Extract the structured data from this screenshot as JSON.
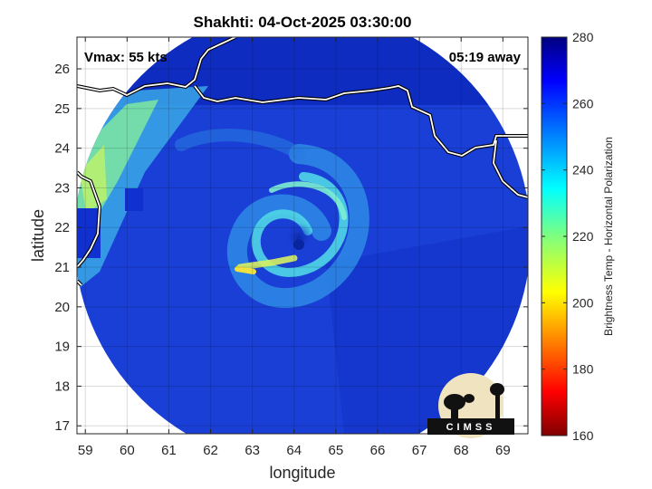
{
  "chart_data": {
    "type": "heatmap",
    "title": "Shakhti: 04-Oct-2025 03:30:00",
    "xlabel": "longitude",
    "ylabel": "latitude",
    "xlim": [
      58.8,
      69.6
    ],
    "ylim": [
      16.8,
      26.8
    ],
    "xticks": [
      59,
      60,
      61,
      62,
      63,
      64,
      65,
      66,
      67,
      68,
      69
    ],
    "yticks": [
      17,
      18,
      19,
      20,
      21,
      22,
      23,
      24,
      25,
      26
    ],
    "grid": true,
    "storm_center": {
      "lon": 64.3,
      "lat": 21.8
    },
    "annotations": {
      "vmax": "Vmax: 55 kts",
      "time_offset": "05:19 away"
    },
    "colorbar": {
      "label": "Brightness Temp - Horizontal Polarization",
      "range": [
        160,
        280
      ],
      "ticks": [
        160,
        180,
        200,
        220,
        240,
        260,
        280
      ],
      "colormap": "jet"
    },
    "logo_text": "CIMSS"
  },
  "colors": {
    "background_swath": "#1a3fd6",
    "cold_band": "#4fe0d8",
    "warm_coast": "#9ef06a",
    "coastline": "#ffffff"
  }
}
